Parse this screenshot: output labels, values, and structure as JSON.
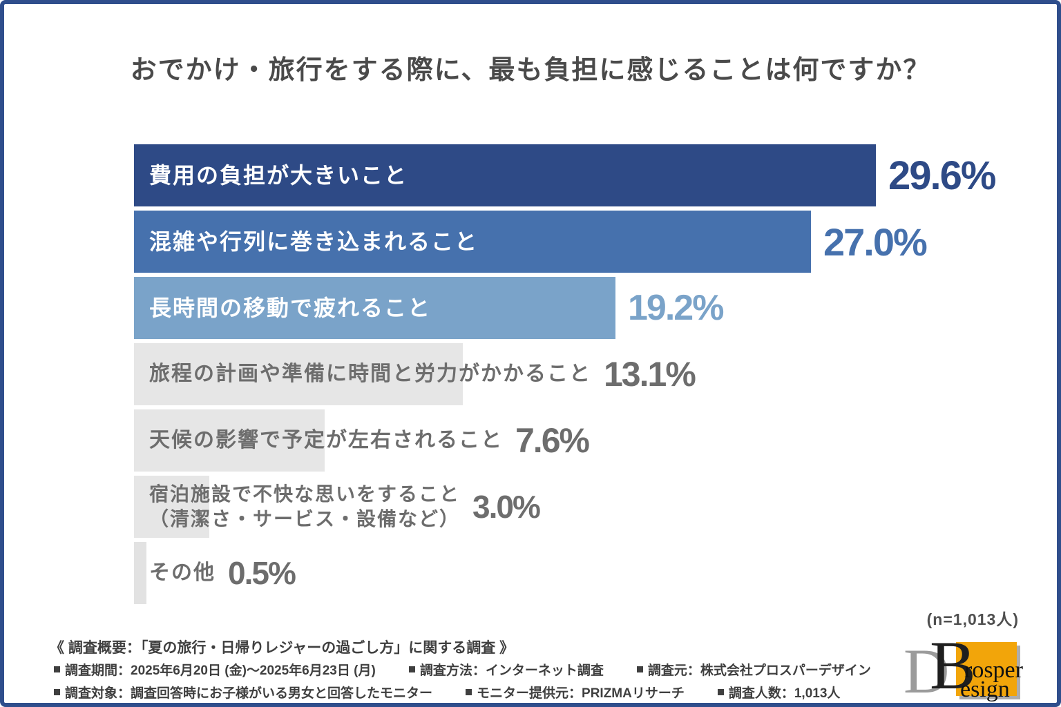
{
  "title": "おでかけ・旅行をする際に、最も負担に感じることは何ですか？",
  "n_note": "(n=1,013人)",
  "theme": {
    "frame_color": "#2f4e8c",
    "title_color": "#4a4a4a",
    "footer_text_color": "#3f3f3f"
  },
  "chart_data": {
    "type": "bar",
    "orientation": "horizontal",
    "title": "おでかけ・旅行をする際に、最も負担に感じることは何ですか？",
    "unit": "%",
    "xlim": [
      0,
      30
    ],
    "grid": false,
    "legend": "none",
    "categories": [
      "費用の負担が大きいこと",
      "混雑や行列に巻き込まれること",
      "長時間の移動で疲れること",
      "旅程の計画や準備に時間と労力がかかること",
      "天候の影響で予定が左右されること",
      "宿泊施設で不快な思いをすること（清潔さ・サービス・設備など）",
      "その他"
    ],
    "values": [
      29.6,
      27.0,
      19.2,
      13.1,
      7.6,
      3.0,
      0.5
    ],
    "rows": [
      {
        "label": "費用の負担が大きいこと",
        "value": 29.6,
        "percent_label": "29.6%",
        "bar_color": "#2e4a86",
        "label_color": "#ffffff",
        "percent_color": "#2e4a86"
      },
      {
        "label": "混雑や行列に巻き込まれること",
        "value": 27.0,
        "percent_label": "27.0%",
        "bar_color": "#4671ad",
        "label_color": "#ffffff",
        "percent_color": "#4671ad"
      },
      {
        "label": "長時間の移動で疲れること",
        "value": 19.2,
        "percent_label": "19.2%",
        "bar_color": "#7aa3c9",
        "label_color": "#ffffff",
        "percent_color": "#7aa3c9"
      },
      {
        "label": "旅程の計画や準備に時間と労力がかかること",
        "value": 13.1,
        "percent_label": "13.1%",
        "bar_color": "#e6e6e6",
        "label_color": "#6d6d6d",
        "percent_color": "#6d6d6d"
      },
      {
        "label": "天候の影響で予定が左右されること",
        "value": 7.6,
        "percent_label": "7.6%",
        "bar_color": "#e6e6e6",
        "label_color": "#6d6d6d",
        "percent_color": "#6d6d6d"
      },
      {
        "label": "宿泊施設で不快な思いをすること\n（清潔さ・サービス・設備など）",
        "value": 3.0,
        "percent_label": "3.0%",
        "bar_color": "#e6e6e6",
        "label_color": "#6d6d6d",
        "percent_color": "#6d6d6d"
      },
      {
        "label": "その他",
        "value": 0.5,
        "percent_label": "0.5%",
        "bar_color": "#e2e2e2",
        "label_color": "#6d6d6d",
        "percent_color": "#6d6d6d"
      }
    ]
  },
  "footer": {
    "survey_overview": "《 調査概要：「夏の旅行・日帰りレジャーの過ごし方」に関する調査 》",
    "line1_segments": [
      "調査期間：2025年6月20日 (金)～2025年6月23日 (月)",
      "調査方法：インターネット調査",
      "調査元：株式会社プロスパーデザイン"
    ],
    "line2_segments": [
      "調査対象：調査回答時にお子様がいる男女と回答したモニター",
      "モニター提供元：PRIZMAリサーチ",
      "調査人数：1,013人"
    ]
  },
  "logo": {
    "back_letter": "D",
    "front_letter": "B",
    "word_top": "rosper",
    "word_bottom": "esign",
    "accent_color": "#f2a50a"
  }
}
